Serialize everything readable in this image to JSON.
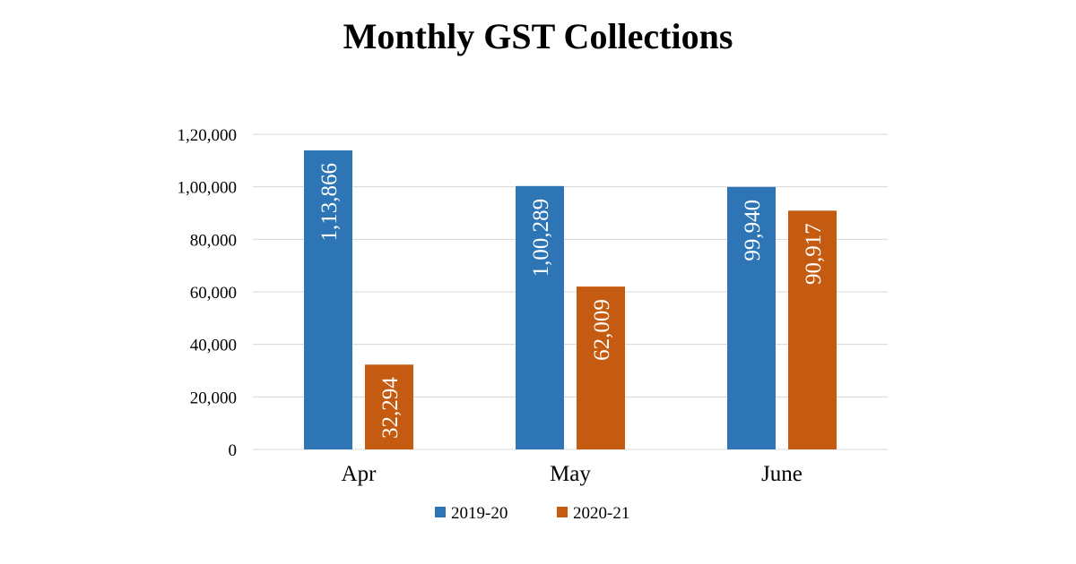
{
  "chart_data": {
    "type": "bar",
    "title": "Monthly GST Collections",
    "xlabel": "",
    "ylabel": "",
    "categories": [
      "Apr",
      "May",
      "June"
    ],
    "series": [
      {
        "name": "2019-20",
        "color": "#2e75b6",
        "values": [
          113866,
          100289,
          99940
        ],
        "labels": [
          "1,13,866",
          "1,00,289",
          "99,940"
        ]
      },
      {
        "name": "2020-21",
        "color": "#c55a11",
        "values": [
          32294,
          62009,
          90917
        ],
        "labels": [
          "32,294",
          "62,009",
          "90,917"
        ]
      }
    ],
    "ylim": [
      0,
      120000
    ],
    "yticks": [
      0,
      20000,
      40000,
      60000,
      80000,
      100000,
      120000
    ],
    "ytick_labels": [
      "0",
      "20,000",
      "40,000",
      "60,000",
      "80,000",
      "1,00,000",
      "1,20,000"
    ],
    "grid": true,
    "legend_position": "bottom"
  }
}
